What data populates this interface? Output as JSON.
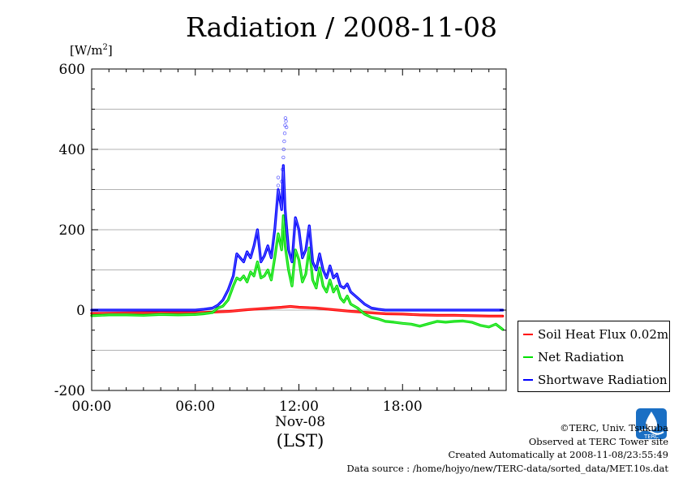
{
  "title": "Radiation / 2008-11-08",
  "y_unit_text": "[W/m",
  "y_unit_sup": "2",
  "y_unit_close": "]",
  "x_date_label": "Nov-08",
  "x_axis_label": "(LST)",
  "credits": {
    "copyright": "©TERC, Univ. Tsukuba",
    "site": "Observed at TERC Tower site",
    "created": "Created Automatically at 2008-11-08/23:55:49",
    "source": "Data source : /home/hojyo/new/TERC-data/sorted_data/MET.10s.dat"
  },
  "logo_text": "TERC",
  "chart_data": {
    "type": "line",
    "title": "Radiation / 2008-11-08",
    "ylabel": "[W/m2]",
    "xlabel": "(LST)",
    "xlim": [
      0,
      24
    ],
    "ylim": [
      -200,
      600
    ],
    "x_ticks": [
      0,
      6,
      12,
      18
    ],
    "x_tick_labels": [
      "00:00",
      "06:00",
      "12:00",
      "18:00"
    ],
    "y_ticks": [
      -200,
      0,
      200,
      400,
      600
    ],
    "y_tick_labels": [
      "-200",
      "0",
      "200",
      "400",
      "600"
    ],
    "grid": true,
    "legend_position": "bottom-right-outside",
    "series": [
      {
        "name": "Soil Heat Flux 0.02m",
        "color": "#ff0000",
        "points": [
          [
            0,
            -8
          ],
          [
            2,
            -7
          ],
          [
            4,
            -6
          ],
          [
            6,
            -6
          ],
          [
            7,
            -5
          ],
          [
            8,
            -3
          ],
          [
            9,
            1
          ],
          [
            10,
            4
          ],
          [
            11,
            7
          ],
          [
            11.5,
            9
          ],
          [
            12,
            7
          ],
          [
            13,
            5
          ],
          [
            14,
            1
          ],
          [
            15,
            -3
          ],
          [
            16,
            -6
          ],
          [
            17,
            -9
          ],
          [
            18,
            -10
          ],
          [
            19,
            -12
          ],
          [
            20,
            -13
          ],
          [
            21,
            -13
          ],
          [
            22,
            -14
          ],
          [
            23,
            -15
          ],
          [
            23.8,
            -15
          ]
        ]
      },
      {
        "name": "Net Radiation",
        "color": "#00e000",
        "points": [
          [
            0,
            -14
          ],
          [
            1,
            -12
          ],
          [
            2,
            -12
          ],
          [
            3,
            -13
          ],
          [
            4,
            -11
          ],
          [
            5,
            -12
          ],
          [
            6,
            -11
          ],
          [
            6.5,
            -9
          ],
          [
            7,
            -6
          ],
          [
            7.3,
            5
          ],
          [
            7.6,
            10
          ],
          [
            7.9,
            25
          ],
          [
            8.2,
            60
          ],
          [
            8.4,
            80
          ],
          [
            8.6,
            75
          ],
          [
            8.8,
            85
          ],
          [
            9,
            70
          ],
          [
            9.2,
            95
          ],
          [
            9.4,
            85
          ],
          [
            9.6,
            120
          ],
          [
            9.8,
            80
          ],
          [
            10,
            85
          ],
          [
            10.2,
            100
          ],
          [
            10.4,
            75
          ],
          [
            10.6,
            130
          ],
          [
            10.8,
            190
          ],
          [
            11,
            150
          ],
          [
            11.1,
            235
          ],
          [
            11.2,
            160
          ],
          [
            11.4,
            100
          ],
          [
            11.6,
            60
          ],
          [
            11.8,
            150
          ],
          [
            12,
            125
          ],
          [
            12.2,
            70
          ],
          [
            12.4,
            90
          ],
          [
            12.6,
            155
          ],
          [
            12.8,
            75
          ],
          [
            13,
            55
          ],
          [
            13.2,
            105
          ],
          [
            13.4,
            60
          ],
          [
            13.6,
            45
          ],
          [
            13.8,
            75
          ],
          [
            14,
            45
          ],
          [
            14.2,
            60
          ],
          [
            14.4,
            30
          ],
          [
            14.6,
            20
          ],
          [
            14.8,
            35
          ],
          [
            15,
            15
          ],
          [
            15.4,
            5
          ],
          [
            15.8,
            -10
          ],
          [
            16.2,
            -18
          ],
          [
            16.6,
            -22
          ],
          [
            17,
            -28
          ],
          [
            17.5,
            -30
          ],
          [
            18,
            -33
          ],
          [
            18.5,
            -35
          ],
          [
            19,
            -40
          ],
          [
            19.5,
            -34
          ],
          [
            20,
            -28
          ],
          [
            20.5,
            -30
          ],
          [
            21,
            -28
          ],
          [
            21.5,
            -27
          ],
          [
            22,
            -30
          ],
          [
            22.5,
            -38
          ],
          [
            23,
            -42
          ],
          [
            23.4,
            -35
          ],
          [
            23.8,
            -48
          ]
        ]
      },
      {
        "name": "Shortwave Radiation",
        "color": "#0000ff",
        "points": [
          [
            0,
            0
          ],
          [
            2,
            0
          ],
          [
            4,
            0
          ],
          [
            6,
            0
          ],
          [
            6.5,
            2
          ],
          [
            7,
            5
          ],
          [
            7.3,
            12
          ],
          [
            7.6,
            25
          ],
          [
            7.9,
            50
          ],
          [
            8.2,
            85
          ],
          [
            8.4,
            140
          ],
          [
            8.6,
            130
          ],
          [
            8.8,
            120
          ],
          [
            9,
            145
          ],
          [
            9.2,
            130
          ],
          [
            9.4,
            160
          ],
          [
            9.6,
            200
          ],
          [
            9.8,
            120
          ],
          [
            10,
            135
          ],
          [
            10.2,
            160
          ],
          [
            10.4,
            130
          ],
          [
            10.6,
            200
          ],
          [
            10.8,
            300
          ],
          [
            11,
            250
          ],
          [
            11.1,
            360
          ],
          [
            11.2,
            250
          ],
          [
            11.4,
            150
          ],
          [
            11.6,
            120
          ],
          [
            11.8,
            230
          ],
          [
            12,
            200
          ],
          [
            12.2,
            130
          ],
          [
            12.4,
            150
          ],
          [
            12.6,
            210
          ],
          [
            12.8,
            120
          ],
          [
            13,
            100
          ],
          [
            13.2,
            140
          ],
          [
            13.4,
            100
          ],
          [
            13.6,
            80
          ],
          [
            13.8,
            110
          ],
          [
            14,
            80
          ],
          [
            14.2,
            90
          ],
          [
            14.4,
            60
          ],
          [
            14.6,
            55
          ],
          [
            14.8,
            65
          ],
          [
            15,
            45
          ],
          [
            15.4,
            30
          ],
          [
            15.8,
            15
          ],
          [
            16.2,
            5
          ],
          [
            16.6,
            2
          ],
          [
            17,
            0
          ],
          [
            18,
            0
          ],
          [
            20,
            0
          ],
          [
            22,
            0
          ],
          [
            23.8,
            0
          ]
        ]
      }
    ],
    "outliers": {
      "series": "Shortwave Radiation",
      "points": [
        [
          10.8,
          310
        ],
        [
          10.8,
          330
        ],
        [
          11,
          320
        ],
        [
          11.05,
          350
        ],
        [
          11.1,
          380
        ],
        [
          11.12,
          400
        ],
        [
          11.15,
          420
        ],
        [
          11.18,
          440
        ],
        [
          11.2,
          460
        ],
        [
          11.22,
          478
        ],
        [
          11.25,
          470
        ],
        [
          11.28,
          455
        ]
      ]
    }
  }
}
